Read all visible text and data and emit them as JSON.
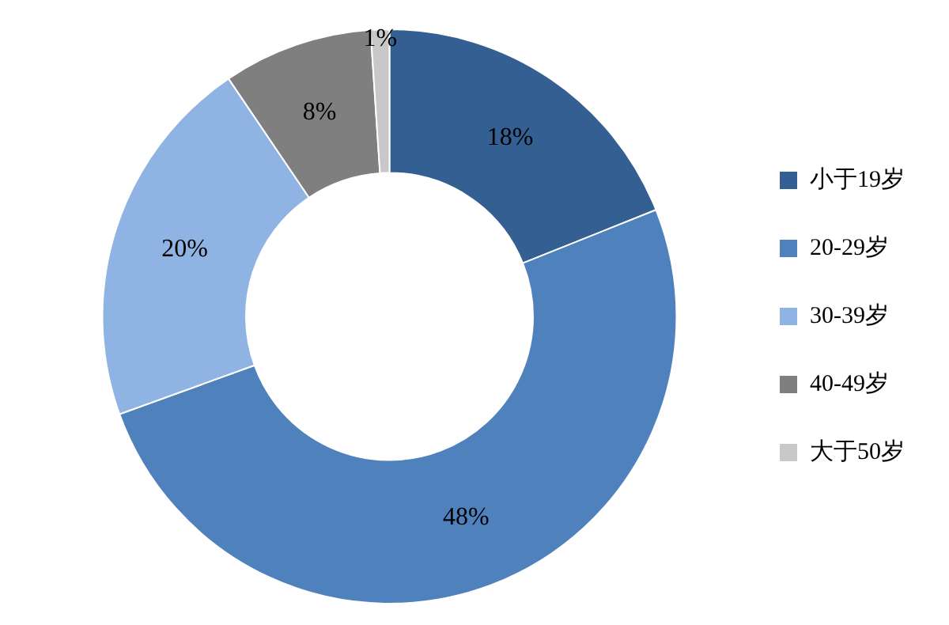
{
  "chart_data": {
    "type": "donut",
    "categories": [
      "小于19岁",
      "20-29岁",
      "30-39岁",
      "40-49岁",
      "大于50岁"
    ],
    "values": [
      18,
      48,
      20,
      8,
      1
    ],
    "colors": [
      "#345f92",
      "#4f81bd",
      "#8fb4e3",
      "#7f7f7f",
      "#c8c8c8"
    ],
    "value_labels": [
      "18%",
      "48%",
      "20%",
      "8%",
      "1%"
    ],
    "legend": "right"
  }
}
